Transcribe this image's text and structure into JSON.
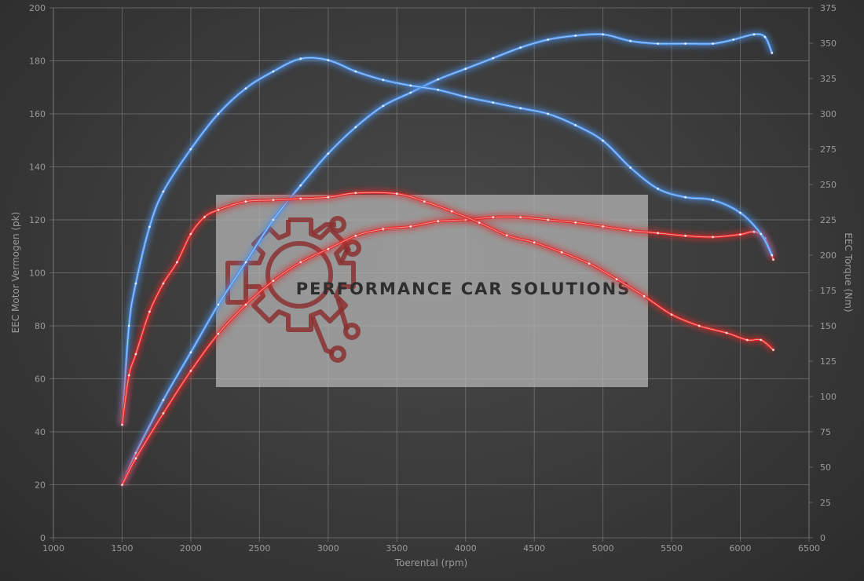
{
  "chart_data": {
    "type": "line",
    "title": "",
    "xlabel": "Toerental (rpm)",
    "ylabel_left": "EEC Motor Vermogen (pk)",
    "ylabel_right": "EEC Torque (Nm)",
    "xlim": [
      1000,
      6500
    ],
    "ylim_left": [
      0,
      200
    ],
    "ylim_right": [
      0,
      375
    ],
    "x_ticks": [
      1000,
      1500,
      2000,
      2500,
      3000,
      3500,
      4000,
      4500,
      5000,
      5500,
      6000,
      6500
    ],
    "y_left_ticks": [
      0,
      20,
      40,
      60,
      80,
      100,
      120,
      140,
      160,
      180,
      200
    ],
    "y_right_ticks": [
      0,
      25,
      50,
      75,
      100,
      125,
      150,
      175,
      200,
      225,
      250,
      275,
      300,
      325,
      350,
      375
    ],
    "grid": true,
    "legend": "none",
    "series": [
      {
        "axis": "left",
        "kind": "power",
        "color": "#4a8fe8",
        "points": [
          [
            1500,
            20
          ],
          [
            1600,
            32
          ],
          [
            1800,
            52
          ],
          [
            2000,
            70
          ],
          [
            2200,
            88
          ],
          [
            2400,
            104
          ],
          [
            2600,
            120
          ],
          [
            2800,
            133
          ],
          [
            3000,
            145
          ],
          [
            3200,
            155
          ],
          [
            3400,
            163
          ],
          [
            3600,
            168
          ],
          [
            3800,
            173
          ],
          [
            4000,
            177
          ],
          [
            4200,
            181
          ],
          [
            4400,
            185
          ],
          [
            4600,
            188
          ],
          [
            4800,
            189.5
          ],
          [
            5000,
            190
          ],
          [
            5200,
            187.5
          ],
          [
            5400,
            186.5
          ],
          [
            5600,
            186.5
          ],
          [
            5800,
            186.5
          ],
          [
            5950,
            188
          ],
          [
            6100,
            190
          ],
          [
            6180,
            189
          ],
          [
            6230,
            183
          ]
        ]
      },
      {
        "axis": "left",
        "kind": "power",
        "color": "#e02a2a",
        "points": [
          [
            1500,
            20
          ],
          [
            1600,
            30
          ],
          [
            1800,
            47
          ],
          [
            2000,
            63
          ],
          [
            2200,
            77
          ],
          [
            2400,
            88
          ],
          [
            2600,
            97
          ],
          [
            2800,
            104
          ],
          [
            3000,
            109
          ],
          [
            3200,
            114
          ],
          [
            3400,
            116.5
          ],
          [
            3600,
            117.5
          ],
          [
            3800,
            119.5
          ],
          [
            4000,
            120
          ],
          [
            4200,
            121
          ],
          [
            4400,
            121
          ],
          [
            4600,
            120
          ],
          [
            4800,
            119
          ],
          [
            5000,
            117.5
          ],
          [
            5200,
            116
          ],
          [
            5400,
            115
          ],
          [
            5600,
            114
          ],
          [
            5800,
            113.5
          ],
          [
            6000,
            114.5
          ],
          [
            6100,
            115.5
          ],
          [
            6180,
            113
          ],
          [
            6240,
            105
          ]
        ]
      },
      {
        "axis": "right",
        "kind": "torque",
        "color": "#4a8fe8",
        "points": [
          [
            1500,
            80
          ],
          [
            1550,
            150
          ],
          [
            1600,
            180
          ],
          [
            1700,
            220
          ],
          [
            1800,
            245
          ],
          [
            2000,
            275
          ],
          [
            2200,
            300
          ],
          [
            2400,
            318
          ],
          [
            2600,
            330
          ],
          [
            2800,
            339
          ],
          [
            3000,
            338
          ],
          [
            3200,
            330
          ],
          [
            3400,
            324
          ],
          [
            3600,
            320
          ],
          [
            3800,
            317
          ],
          [
            4000,
            312
          ],
          [
            4200,
            308
          ],
          [
            4400,
            304
          ],
          [
            4600,
            300
          ],
          [
            4800,
            292
          ],
          [
            5000,
            281
          ],
          [
            5200,
            262
          ],
          [
            5400,
            247
          ],
          [
            5600,
            241
          ],
          [
            5800,
            239
          ],
          [
            6000,
            230
          ],
          [
            6150,
            215
          ],
          [
            6230,
            200
          ]
        ]
      },
      {
        "axis": "right",
        "kind": "torque",
        "color": "#e02a2a",
        "points": [
          [
            1500,
            80
          ],
          [
            1550,
            115
          ],
          [
            1600,
            130
          ],
          [
            1700,
            160
          ],
          [
            1800,
            180
          ],
          [
            1900,
            195
          ],
          [
            2000,
            215
          ],
          [
            2100,
            227
          ],
          [
            2200,
            232
          ],
          [
            2400,
            238
          ],
          [
            2600,
            239
          ],
          [
            2800,
            240
          ],
          [
            3000,
            241
          ],
          [
            3200,
            244
          ],
          [
            3500,
            243.5
          ],
          [
            3700,
            238
          ],
          [
            3900,
            231
          ],
          [
            4100,
            223
          ],
          [
            4300,
            214
          ],
          [
            4500,
            209
          ],
          [
            4700,
            202
          ],
          [
            4900,
            194
          ],
          [
            5100,
            183
          ],
          [
            5300,
            171
          ],
          [
            5500,
            158
          ],
          [
            5700,
            150
          ],
          [
            5900,
            145
          ],
          [
            6050,
            140
          ],
          [
            6150,
            140
          ],
          [
            6240,
            133
          ]
        ]
      }
    ]
  },
  "watermark": {
    "text": "PERFORMANCE CAR SOLUTIONS",
    "gear_color": "#8a3030",
    "box_color": "#b8b8b8"
  }
}
